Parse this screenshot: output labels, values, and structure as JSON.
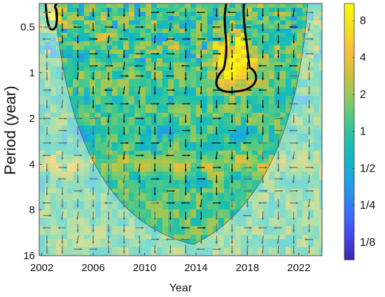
{
  "chart_data": {
    "type": "heatmap",
    "subtype": "wavelet-coherence",
    "xlabel": "Year",
    "ylabel": "Period (year)",
    "x_ticks": [
      "2002",
      "2006",
      "2010",
      "2014",
      "2018",
      "2022"
    ],
    "x_tick_values": [
      2002,
      2006,
      2010,
      2014,
      2018,
      2022
    ],
    "xlim": [
      2001.8,
      2023.8
    ],
    "y_ticks": [
      "0.5",
      "1",
      "2",
      "4",
      "8",
      "16"
    ],
    "y_tick_values": [
      0.5,
      1,
      2,
      4,
      8,
      16
    ],
    "ylim": [
      0.35,
      16
    ],
    "y_scale": "log2",
    "colorbar": {
      "labels": [
        "8",
        "4",
        "2",
        "1",
        "1/2",
        "1/4",
        "1/8"
      ],
      "values": [
        8,
        4,
        2,
        1,
        0.5,
        0.25,
        0.125
      ],
      "range": [
        0.09,
        11
      ],
      "scale": "log2",
      "colors": [
        "#3e26a8",
        "#4746eb",
        "#3b6ffc",
        "#2797eb",
        "#16b1cf",
        "#18bfb0",
        "#49c98a",
        "#93ca5b",
        "#d1bf3c",
        "#fcbf3d",
        "#f5e21a",
        "#f9fb0e"
      ]
    },
    "field": {
      "low_bands_period": [
        1.5,
        2.5,
        3.2,
        5.0
      ],
      "high_band_period": 4.0,
      "hotspot": {
        "year_range": [
          2015.5,
          2018.6
        ],
        "period_range": [
          0.35,
          1.3
        ],
        "peak_value": 10
      }
    },
    "significance_contours": [
      {
        "year_range": [
          2002.3,
          2003.3
        ],
        "period_range": [
          0.35,
          0.52
        ]
      },
      {
        "year_range": [
          2015.5,
          2018.6
        ],
        "period_range": [
          0.35,
          1.3
        ]
      }
    ],
    "cone_of_influence": {
      "left_edge_year": 2003.0,
      "right_edge_year": 2022.7,
      "bottom_year": 2013.8,
      "bottom_period": 13.5
    },
    "phase_arrows": {
      "x_step_years": 1.2,
      "period_levels": [
        0.4,
        0.5,
        0.6,
        0.75,
        0.9,
        1.05,
        1.3,
        1.6,
        2.0,
        2.4,
        2.9,
        3.5,
        4.2,
        5.0,
        6.0,
        7.2,
        8.7,
        10.5,
        12.5,
        14.5
      ]
    }
  }
}
